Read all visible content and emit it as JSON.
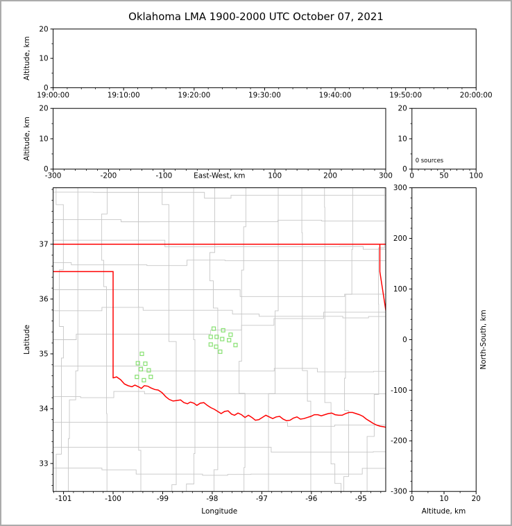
{
  "title": "Oklahoma LMA 1900-2000 UTC October 07, 2021",
  "colors": {
    "background": "#ffffff",
    "frame_border": "#ababab",
    "axis": "#000000",
    "county_line": "#c6c6c6",
    "state_border": "#ff0000",
    "station_marker": "#86e070"
  },
  "panels": {
    "time_height": {
      "ylabel": "Altitude, km",
      "x_tick_labels": [
        "19:00:00",
        "19:10:00",
        "19:20:00",
        "19:30:00",
        "19:40:00",
        "19:50:00",
        "20:00:00"
      ],
      "x_tick_values": [
        0,
        10,
        20,
        30,
        40,
        50,
        60
      ],
      "xlim": [
        0,
        60
      ],
      "y_tick_labels": [
        "0",
        "10",
        "20"
      ],
      "y_tick_values": [
        0,
        10,
        20
      ],
      "ylim": [
        0,
        20
      ]
    },
    "ew_height": {
      "ylabel": "Altitude, km",
      "xlabel": "East-West, km",
      "x_tick_labels": [
        "-300",
        "-200",
        "-100",
        "",
        "100",
        "200",
        "300"
      ],
      "x_tick_values": [
        -300,
        -200,
        -100,
        0,
        100,
        200,
        300
      ],
      "xlim": [
        -300,
        300
      ],
      "y_tick_labels": [
        "0",
        "10",
        "20"
      ],
      "y_tick_values": [
        0,
        10,
        20
      ],
      "ylim": [
        0,
        20
      ]
    },
    "altitude_histogram": {
      "annotation": "0 sources",
      "x_tick_labels": [
        "0",
        "50",
        "100"
      ],
      "x_tick_values": [
        0,
        50,
        100
      ],
      "xlim": [
        0,
        100
      ],
      "y_tick_labels": [
        "0",
        "10",
        "20"
      ],
      "y_tick_values": [
        0,
        10,
        20
      ],
      "ylim": [
        0,
        20
      ]
    },
    "map": {
      "xlabel": "Longitude",
      "ylabel": "Latitude",
      "x_tick_labels": [
        "-101",
        "-100",
        "-99",
        "-98",
        "-97",
        "-96",
        "-95"
      ],
      "x_tick_values": [
        -101,
        -100,
        -99,
        -98,
        -97,
        -96,
        -95
      ],
      "xlim": [
        -101.21,
        -94.5
      ],
      "y_tick_labels": [
        "33",
        "34",
        "35",
        "36",
        "37"
      ],
      "y_tick_values": [
        33,
        34,
        35,
        36,
        37
      ],
      "ylim": [
        32.49,
        38.03
      ]
    },
    "ns_height": {
      "ylabel_right": "North-South, km",
      "xlabel": "Altitude, km",
      "x_tick_labels": [
        "0",
        "10",
        "20"
      ],
      "x_tick_values": [
        0,
        10,
        20
      ],
      "xlim": [
        0,
        20
      ],
      "y_tick_labels": [
        "300",
        "200",
        "100",
        "0",
        "-100",
        "-200",
        "-300"
      ],
      "y_tick_values": [
        300,
        200,
        100,
        0,
        -100,
        -200,
        -300
      ],
      "ylim": [
        -300,
        300
      ]
    }
  },
  "chart_data": {
    "type": "scatter",
    "title": "Oklahoma LMA 1900-2000 UTC October 07, 2021",
    "source_count_annotation": "0 sources",
    "lma_stations_lon_lat": [
      [
        -99.42,
        35.0
      ],
      [
        -99.5,
        34.83
      ],
      [
        -99.35,
        34.82
      ],
      [
        -99.44,
        34.72
      ],
      [
        -99.28,
        34.7
      ],
      [
        -99.52,
        34.58
      ],
      [
        -99.38,
        34.52
      ],
      [
        -99.24,
        34.58
      ],
      [
        -97.97,
        35.46
      ],
      [
        -97.78,
        35.43
      ],
      [
        -98.03,
        35.31
      ],
      [
        -97.91,
        35.31
      ],
      [
        -97.8,
        35.27
      ],
      [
        -97.66,
        35.25
      ],
      [
        -98.03,
        35.17
      ],
      [
        -97.92,
        35.13
      ],
      [
        -97.53,
        35.16
      ],
      [
        -97.84,
        35.04
      ],
      [
        -97.63,
        35.35
      ]
    ],
    "state_border_polylines": {
      "oklahoma-kansas-lat37": [
        [
          -101.25,
          37.0
        ],
        [
          -94.45,
          37.0
        ]
      ],
      "panhandle-texas-border": [
        [
          -101.25,
          36.5
        ],
        [
          -100.0,
          36.5
        ],
        [
          -100.0,
          34.555
        ]
      ],
      "missouri-arkansas-border": [
        [
          -94.618,
          37.0
        ],
        [
          -94.618,
          36.5
        ],
        [
          -94.43,
          35.39
        ]
      ],
      "red-river-south-border": [
        [
          -100.0,
          34.56
        ],
        [
          -99.93,
          34.58
        ],
        [
          -99.85,
          34.53
        ],
        [
          -99.77,
          34.45
        ],
        [
          -99.7,
          34.42
        ],
        [
          -99.62,
          34.4
        ],
        [
          -99.56,
          34.43
        ],
        [
          -99.49,
          34.4
        ],
        [
          -99.43,
          34.37
        ],
        [
          -99.37,
          34.42
        ],
        [
          -99.3,
          34.41
        ],
        [
          -99.24,
          34.38
        ],
        [
          -99.16,
          34.35
        ],
        [
          -99.09,
          34.34
        ],
        [
          -99.01,
          34.29
        ],
        [
          -98.94,
          34.22
        ],
        [
          -98.87,
          34.17
        ],
        [
          -98.79,
          34.14
        ],
        [
          -98.71,
          34.15
        ],
        [
          -98.64,
          34.16
        ],
        [
          -98.57,
          34.11
        ],
        [
          -98.5,
          34.09
        ],
        [
          -98.44,
          34.12
        ],
        [
          -98.37,
          34.1
        ],
        [
          -98.31,
          34.06
        ],
        [
          -98.24,
          34.1
        ],
        [
          -98.17,
          34.11
        ],
        [
          -98.1,
          34.06
        ],
        [
          -98.03,
          34.02
        ],
        [
          -97.96,
          33.99
        ],
        [
          -97.89,
          33.95
        ],
        [
          -97.82,
          33.91
        ],
        [
          -97.75,
          33.95
        ],
        [
          -97.68,
          33.96
        ],
        [
          -97.61,
          33.9
        ],
        [
          -97.55,
          33.88
        ],
        [
          -97.48,
          33.92
        ],
        [
          -97.41,
          33.89
        ],
        [
          -97.34,
          33.84
        ],
        [
          -97.27,
          33.88
        ],
        [
          -97.2,
          33.84
        ],
        [
          -97.13,
          33.79
        ],
        [
          -97.06,
          33.8
        ],
        [
          -96.99,
          33.84
        ],
        [
          -96.92,
          33.88
        ],
        [
          -96.85,
          33.85
        ],
        [
          -96.78,
          33.82
        ],
        [
          -96.71,
          33.85
        ],
        [
          -96.64,
          33.86
        ],
        [
          -96.57,
          33.81
        ],
        [
          -96.5,
          33.78
        ],
        [
          -96.43,
          33.79
        ],
        [
          -96.36,
          33.83
        ],
        [
          -96.29,
          33.85
        ],
        [
          -96.22,
          33.81
        ],
        [
          -96.15,
          33.82
        ],
        [
          -96.08,
          33.84
        ],
        [
          -96.01,
          33.86
        ],
        [
          -95.94,
          33.89
        ],
        [
          -95.87,
          33.89
        ],
        [
          -95.8,
          33.87
        ],
        [
          -95.73,
          33.89
        ],
        [
          -95.66,
          33.91
        ],
        [
          -95.59,
          33.92
        ],
        [
          -95.52,
          33.89
        ],
        [
          -95.45,
          33.88
        ],
        [
          -95.38,
          33.88
        ],
        [
          -95.31,
          33.91
        ],
        [
          -95.24,
          33.93
        ],
        [
          -95.17,
          33.93
        ],
        [
          -95.1,
          33.91
        ],
        [
          -95.03,
          33.89
        ],
        [
          -94.96,
          33.86
        ],
        [
          -94.89,
          33.81
        ],
        [
          -94.82,
          33.77
        ],
        [
          -94.75,
          33.73
        ],
        [
          -94.68,
          33.7
        ],
        [
          -94.61,
          33.68
        ],
        [
          -94.54,
          33.67
        ],
        [
          -94.45,
          33.65
        ]
      ]
    }
  }
}
